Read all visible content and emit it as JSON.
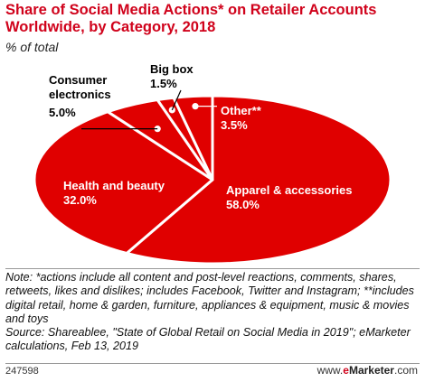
{
  "title": "Share of Social Media Actions* on Retailer Accounts Worldwide, by Category, 2018",
  "subtitle": "% of total",
  "chart_data": {
    "type": "pie",
    "unit": "%",
    "slices": [
      {
        "label": "Apparel & accessories",
        "value": 58.0,
        "value_label": "58.0%"
      },
      {
        "label": "Health and beauty",
        "value": 32.0,
        "value_label": "32.0%"
      },
      {
        "label": "Consumer electronics",
        "value": 5.0,
        "value_label": "5.0%"
      },
      {
        "label": "Big box",
        "value": 1.5,
        "value_label": "1.5%"
      },
      {
        "label": "Other**",
        "value": 3.5,
        "value_label": "3.5%"
      }
    ],
    "colors": {
      "fill": "#e00000",
      "stroke": "#ffffff",
      "leader": "#000000",
      "inside_text": "#ffffff"
    }
  },
  "note": "Note: *actions include all content and post-level reactions, comments, shares, retweets, likes and dislikes; includes Facebook, Twitter and Instagram; **includes digital retail, home & garden, furniture, appliances & equipment, music & movies and toys",
  "source": "Source: Shareablee, \"State of Global Retail on Social Media in 2019\"; eMarketer calculations, Feb 13, 2019",
  "footer": {
    "chart_id": "247598",
    "brand_prefix": "www.",
    "brand_e": "e",
    "brand_name": "Marketer",
    "brand_suffix": ".com"
  }
}
